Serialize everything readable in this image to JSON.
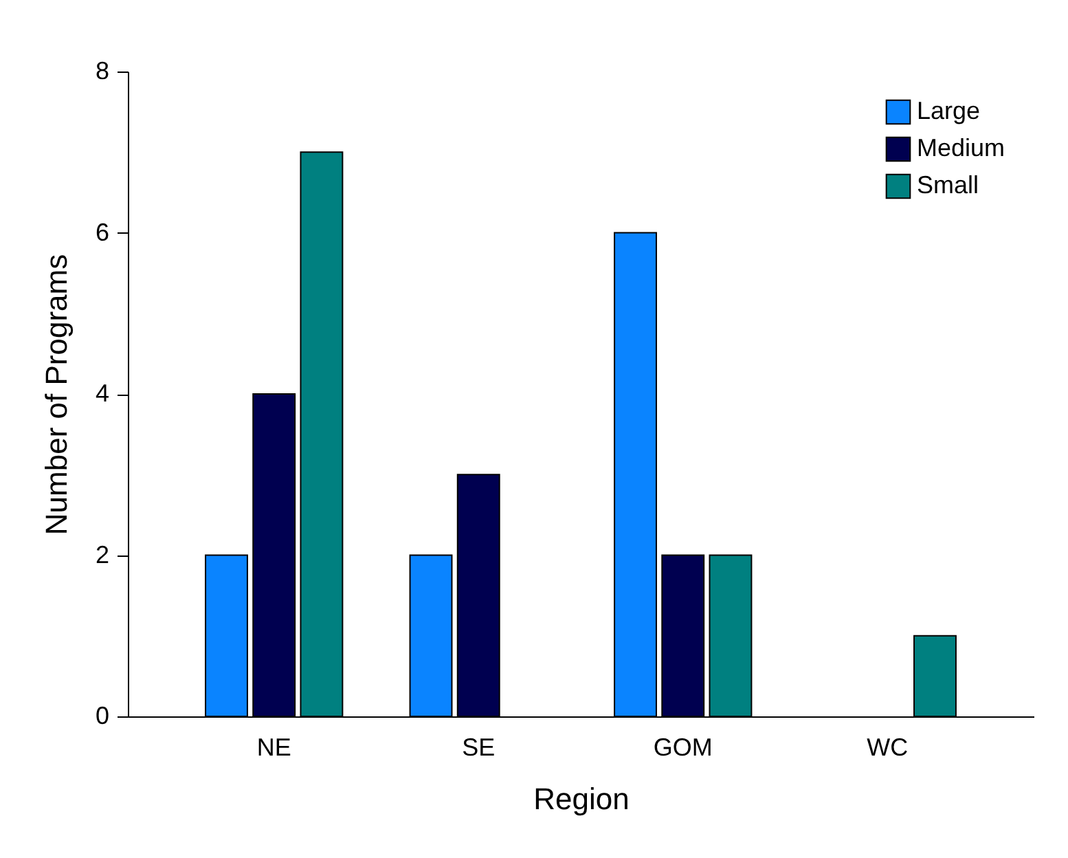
{
  "chart_data": {
    "type": "bar",
    "xlabel": "Region",
    "ylabel": "Number of Programs",
    "categories": [
      "NE",
      "SE",
      "GOM",
      "WC"
    ],
    "series": [
      {
        "name": "Large",
        "color": "#0a84ff",
        "values": [
          2,
          2,
          6,
          null
        ]
      },
      {
        "name": "Medium",
        "color": "#000050",
        "values": [
          4,
          3,
          2,
          null
        ]
      },
      {
        "name": "Small",
        "color": "#008080",
        "values": [
          7,
          null,
          2,
          1
        ]
      }
    ],
    "ylim": [
      0,
      8
    ],
    "yticks": [
      0,
      2,
      4,
      6,
      8
    ],
    "grid": false,
    "legend": "top right"
  }
}
